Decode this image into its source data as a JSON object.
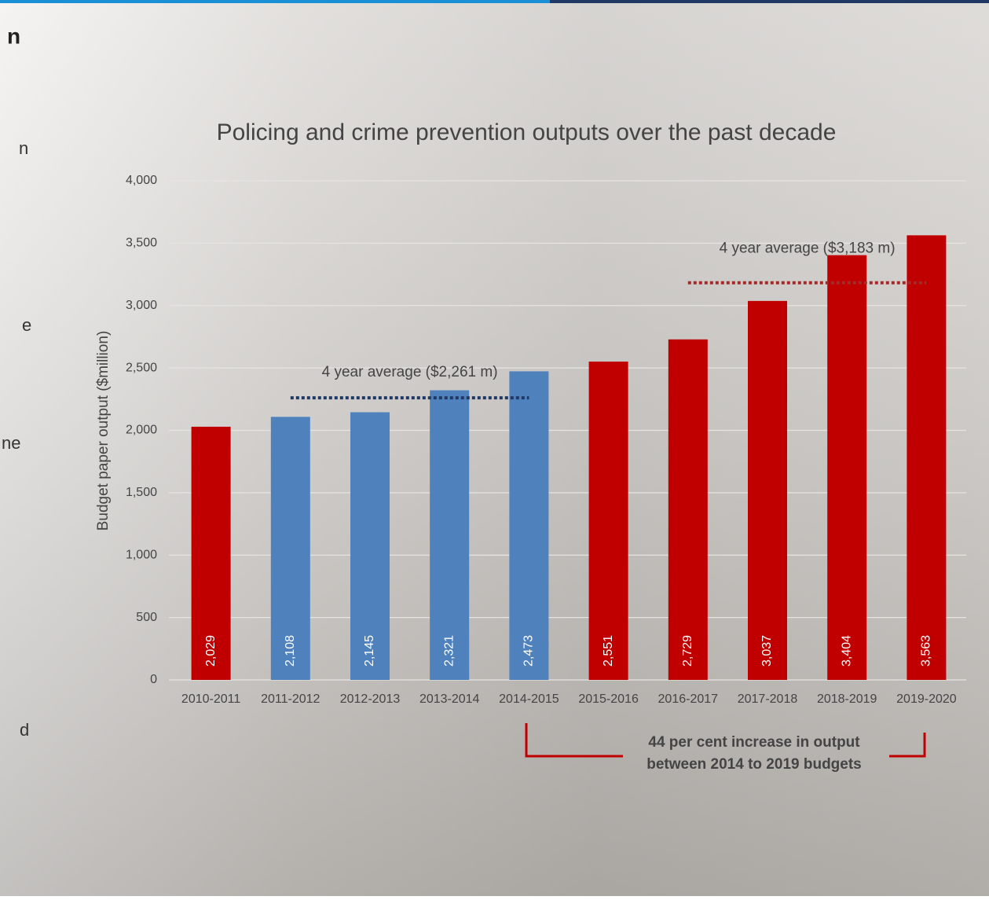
{
  "chart_data": {
    "type": "bar",
    "title": "Policing and crime prevention outputs over the past decade",
    "y_label": "Budget paper output ($million)",
    "categories": [
      "2010-2011",
      "2011-2012",
      "2012-2013",
      "2013-2014",
      "2014-2015",
      "2015-2016",
      "2016-2017",
      "2017-2018",
      "2018-2019",
      "2019-2020"
    ],
    "values": [
      2029,
      2108,
      2145,
      2321,
      2473,
      2551,
      2729,
      3037,
      3404,
      3563
    ],
    "value_labels": [
      "2,029",
      "2,108",
      "2,145",
      "2,321",
      "2,473",
      "2,551",
      "2,729",
      "3,037",
      "3,404",
      "3,563"
    ],
    "colors": [
      "#c00000",
      "#4f81bd",
      "#4f81bd",
      "#4f81bd",
      "#4f81bd",
      "#c00000",
      "#c00000",
      "#c00000",
      "#c00000",
      "#c00000"
    ],
    "ylim": [
      0,
      4000
    ],
    "yticks": [
      0,
      500,
      {
        "value": 1000,
        "label": "1,000"
      },
      {
        "value": 1500,
        "label": "1,500"
      },
      {
        "value": 2000,
        "label": "2,000"
      },
      {
        "value": 2500,
        "label": "2,500"
      },
      {
        "value": 3000,
        "label": "3,000"
      },
      {
        "value": 3500,
        "label": "3,500"
      },
      {
        "value": 4000,
        "label": "4,000"
      }
    ],
    "grid": true,
    "average_lines": [
      {
        "label": "4 year average ($2,261 m)",
        "value": 2261,
        "start": "2011-2012",
        "end": "2014-2015",
        "color": "#1f3864"
      },
      {
        "label": "4 year average ($3,183 m)",
        "value": 3183,
        "start": "2016-2017",
        "end": "2019-2020",
        "color": "#a52a2a"
      }
    ],
    "bracket_note": [
      "44 per cent increase in output",
      "between 2014 to 2019 budgets"
    ],
    "bracket_color": "#c00000"
  },
  "page_fragments": [
    "n",
    "n",
    "e",
    "ne",
    "d"
  ]
}
